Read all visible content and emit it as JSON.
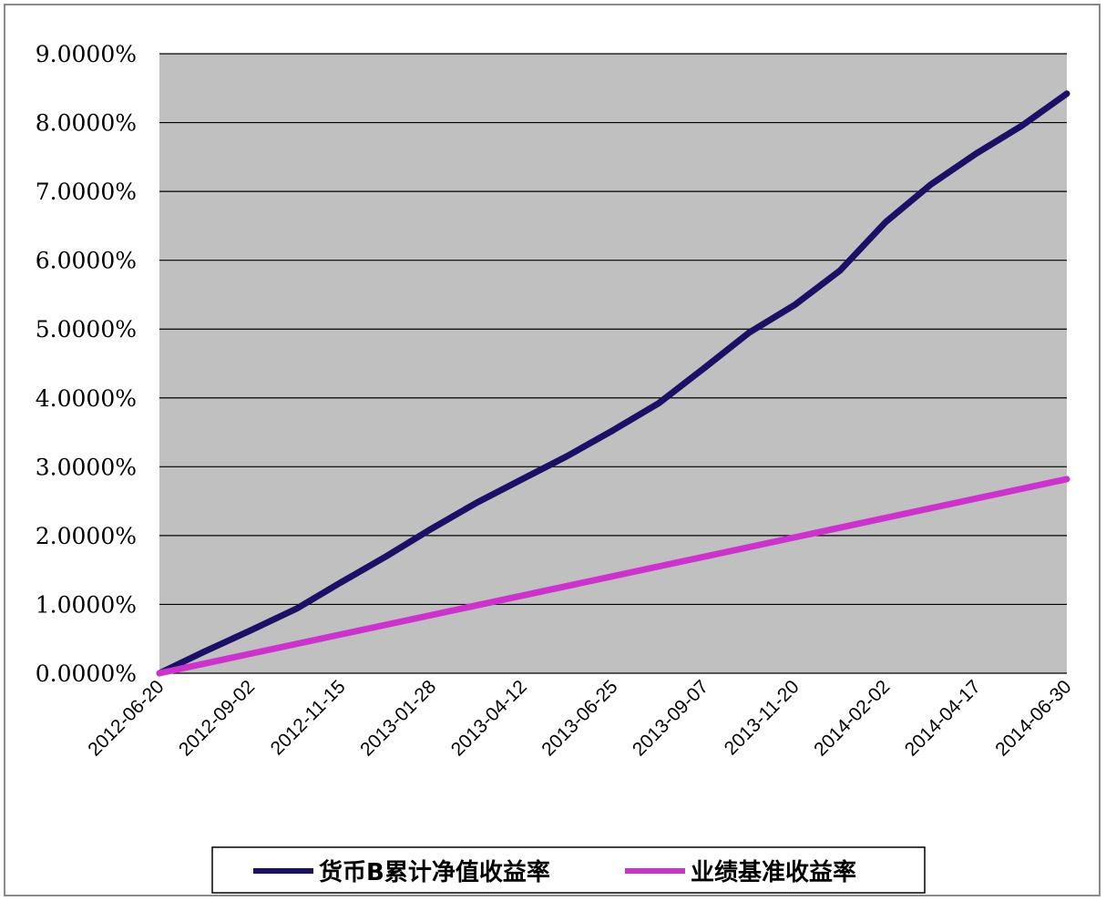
{
  "chart_data": {
    "type": "line",
    "title": "",
    "xlabel": "",
    "ylabel": "",
    "plot_background": "#c0c0c0",
    "grid": "horizontal",
    "legend_position": "bottom",
    "ylim": [
      0,
      9
    ],
    "y_ticks": [
      {
        "value": 0,
        "label": "0.0000%"
      },
      {
        "value": 1,
        "label": "1.0000%"
      },
      {
        "value": 2,
        "label": "2.0000%"
      },
      {
        "value": 3,
        "label": "3.0000%"
      },
      {
        "value": 4,
        "label": "4.0000%"
      },
      {
        "value": 5,
        "label": "5.0000%"
      },
      {
        "value": 6,
        "label": "6.0000%"
      },
      {
        "value": 7,
        "label": "7.0000%"
      },
      {
        "value": 8,
        "label": "8.0000%"
      },
      {
        "value": 9,
        "label": "9.0000%"
      }
    ],
    "x_ticks": [
      "2012-06-20",
      "2012-09-02",
      "2012-11-15",
      "2013-01-28",
      "2013-04-12",
      "2013-06-25",
      "2013-09-07",
      "2013-11-20",
      "2014-02-02",
      "2014-04-17",
      "2014-06-30"
    ],
    "series": [
      {
        "name": "货币B累计净值收益率",
        "color": "#1a1066",
        "points": [
          {
            "date": "2012-06-20",
            "value": 0.0
          },
          {
            "date": "2012-07-26",
            "value": 0.31
          },
          {
            "date": "2012-09-02",
            "value": 0.62
          },
          {
            "date": "2012-10-10",
            "value": 0.94
          },
          {
            "date": "2012-11-15",
            "value": 1.32
          },
          {
            "date": "2012-12-22",
            "value": 1.7
          },
          {
            "date": "2013-01-28",
            "value": 2.1
          },
          {
            "date": "2013-03-06",
            "value": 2.48
          },
          {
            "date": "2013-04-12",
            "value": 2.82
          },
          {
            "date": "2013-05-18",
            "value": 3.15
          },
          {
            "date": "2013-06-25",
            "value": 3.53
          },
          {
            "date": "2013-08-01",
            "value": 3.92
          },
          {
            "date": "2013-09-07",
            "value": 4.43
          },
          {
            "date": "2013-10-14",
            "value": 4.95
          },
          {
            "date": "2013-11-20",
            "value": 5.35
          },
          {
            "date": "2013-12-27",
            "value": 5.85
          },
          {
            "date": "2014-02-02",
            "value": 6.55
          },
          {
            "date": "2014-03-11",
            "value": 7.1
          },
          {
            "date": "2014-04-17",
            "value": 7.55
          },
          {
            "date": "2014-05-24",
            "value": 7.95
          },
          {
            "date": "2014-06-30",
            "value": 8.42
          }
        ]
      },
      {
        "name": "业绩基准收益率",
        "color": "#cc33cc",
        "points": [
          {
            "date": "2012-06-20",
            "value": 0.0
          },
          {
            "date": "2014-06-30",
            "value": 2.82
          }
        ]
      }
    ]
  }
}
